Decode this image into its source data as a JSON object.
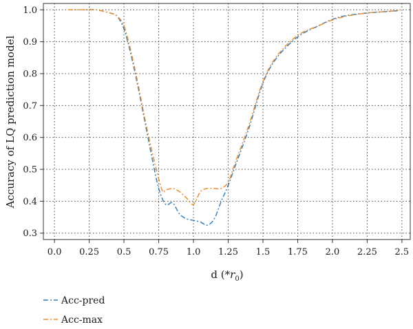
{
  "chart_data": {
    "type": "line",
    "xlabel_main": "d (*",
    "xlabel_var": "r",
    "xlabel_sub": "0",
    "xlabel_close": ")",
    "ylabel": "Accuracy of LQ prediction model",
    "xlim": [
      -0.08,
      2.56
    ],
    "ylim": [
      0.28,
      1.02
    ],
    "xticks": [
      "0.0",
      "0.25",
      "0.5",
      "0.75",
      "1.0",
      "1.25",
      "1.5",
      "1.75",
      "2.0",
      "2.25",
      "2.5"
    ],
    "yticks": [
      "0.3",
      "0.4",
      "0.5",
      "0.6",
      "0.7",
      "0.8",
      "0.9",
      "1.0"
    ],
    "grid": true,
    "legend_position": "below-left",
    "series": [
      {
        "name": "Acc-pred",
        "color": "#2f7fc1",
        "dash": "dashdot",
        "x": [
          0.1,
          0.2,
          0.3,
          0.4,
          0.45,
          0.5,
          0.55,
          0.6,
          0.65,
          0.7,
          0.75,
          0.8,
          0.85,
          0.9,
          0.95,
          1.0,
          1.05,
          1.1,
          1.15,
          1.2,
          1.25,
          1.3,
          1.4,
          1.5,
          1.6,
          1.75,
          1.9,
          2.0,
          2.1,
          2.25,
          2.4,
          2.48
        ],
        "y": [
          1.0,
          1.0,
          1.0,
          0.99,
          0.98,
          0.94,
          0.86,
          0.76,
          0.65,
          0.54,
          0.44,
          0.39,
          0.395,
          0.36,
          0.345,
          0.34,
          0.335,
          0.325,
          0.345,
          0.4,
          0.45,
          0.51,
          0.63,
          0.77,
          0.85,
          0.915,
          0.95,
          0.97,
          0.982,
          0.99,
          0.995,
          0.997
        ]
      },
      {
        "name": "Acc-max",
        "color": "#f28c28",
        "dash": "dashdot",
        "x": [
          0.1,
          0.2,
          0.3,
          0.4,
          0.45,
          0.5,
          0.55,
          0.6,
          0.65,
          0.7,
          0.75,
          0.78,
          0.8,
          0.85,
          0.9,
          0.95,
          1.0,
          1.05,
          1.1,
          1.15,
          1.2,
          1.25,
          1.3,
          1.4,
          1.5,
          1.6,
          1.75,
          1.9,
          2.0,
          2.1,
          2.25,
          2.4,
          2.48
        ],
        "y": [
          1.0,
          1.0,
          1.0,
          0.99,
          0.98,
          0.95,
          0.87,
          0.77,
          0.66,
          0.56,
          0.47,
          0.43,
          0.435,
          0.44,
          0.43,
          0.41,
          0.39,
          0.43,
          0.44,
          0.44,
          0.44,
          0.46,
          0.52,
          0.64,
          0.775,
          0.855,
          0.92,
          0.95,
          0.968,
          0.98,
          0.99,
          0.995,
          0.998
        ]
      }
    ]
  }
}
